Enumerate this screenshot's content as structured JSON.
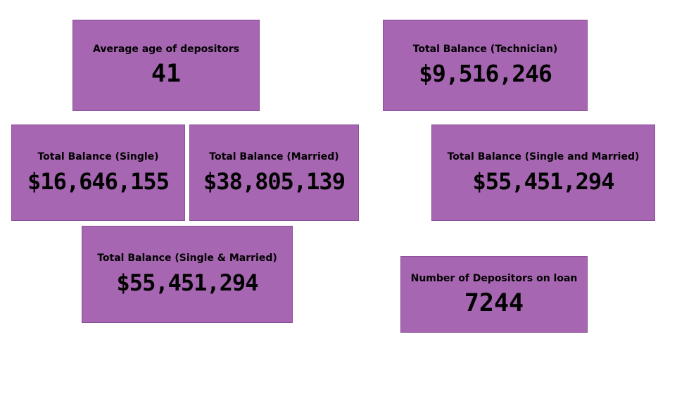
{
  "cards": {
    "avg_age": {
      "label": "Average age of depositors",
      "value": "41"
    },
    "tech": {
      "label": "Total Balance (Technician)",
      "value": "$9,516,246"
    },
    "single": {
      "label": "Total Balance (Single)",
      "value": "$16,646,155"
    },
    "married": {
      "label": "Total Balance (Married)",
      "value": "$38,805,139"
    },
    "single_married": {
      "label": "Total Balance (Single and Married)",
      "value": "$55,451,294"
    },
    "single_amp_married": {
      "label": "Total Balance (Single & Married)",
      "value": "$55,451,294"
    },
    "loan": {
      "label": "Number of Depositors on loan",
      "value": "7244"
    }
  },
  "colors": {
    "card_background": "#a666b1",
    "text": "#000000",
    "page_background": "#ffffff"
  }
}
